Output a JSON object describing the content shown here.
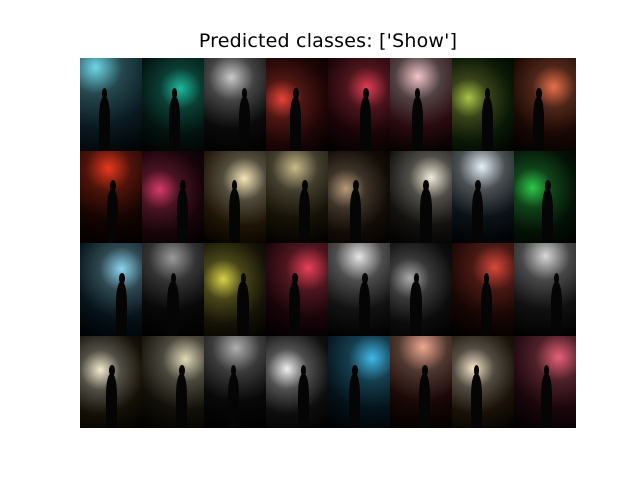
{
  "figure": {
    "title": "Predicted classes: ['Show']"
  },
  "image_grid": {
    "rows": 4,
    "cols": 8,
    "tiles": [
      {
        "palette": [
          "#6fd6e8",
          "#0a1a22"
        ]
      },
      {
        "palette": [
          "#1fb89c",
          "#04130f"
        ]
      },
      {
        "palette": [
          "#c9c9c9",
          "#0a0a0a"
        ]
      },
      {
        "palette": [
          "#e8443a",
          "#200606"
        ]
      },
      {
        "palette": [
          "#e23d55",
          "#1a0408"
        ]
      },
      {
        "palette": [
          "#f2c4c8",
          "#2a0a0e"
        ]
      },
      {
        "palette": [
          "#a8c44a",
          "#0a1806"
        ]
      },
      {
        "palette": [
          "#e8704a",
          "#1a0804"
        ]
      },
      {
        "palette": [
          "#e8381e",
          "#140402"
        ]
      },
      {
        "palette": [
          "#d83a6a",
          "#18040a"
        ]
      },
      {
        "palette": [
          "#f6e6b8",
          "#201406"
        ]
      },
      {
        "palette": [
          "#c8ba8a",
          "#161206"
        ]
      },
      {
        "palette": [
          "#b89a7a",
          "#120c06"
        ]
      },
      {
        "palette": [
          "#f0ead8",
          "#141210"
        ]
      },
      {
        "palette": [
          "#e4f0f8",
          "#0a1218"
        ]
      },
      {
        "palette": [
          "#2ec84a",
          "#041206"
        ]
      },
      {
        "palette": [
          "#8cd6f0",
          "#06121a"
        ]
      },
      {
        "palette": [
          "#9a9a9a",
          "#080808"
        ]
      },
      {
        "palette": [
          "#d8d04a",
          "#161406"
        ]
      },
      {
        "palette": [
          "#e8405a",
          "#18040a"
        ]
      },
      {
        "palette": [
          "#e6e6e6",
          "#121212"
        ]
      },
      {
        "palette": [
          "#aaaaaa",
          "#0c0c0c"
        ]
      },
      {
        "palette": [
          "#d8483a",
          "#160604"
        ]
      },
      {
        "palette": [
          "#d8d8d8",
          "#101010"
        ]
      },
      {
        "palette": [
          "#f4ecd0",
          "#141006"
        ]
      },
      {
        "palette": [
          "#e0d8b8",
          "#121008"
        ]
      },
      {
        "palette": [
          "#b0b0b0",
          "#080808"
        ]
      },
      {
        "palette": [
          "#f0f0f0",
          "#0e0e0e"
        ]
      },
      {
        "palette": [
          "#40b8e8",
          "#04121a"
        ]
      },
      {
        "palette": [
          "#f0a890",
          "#1a0806"
        ]
      },
      {
        "palette": [
          "#f8e6c8",
          "#1a1208"
        ]
      },
      {
        "palette": [
          "#e8607a",
          "#1a060c"
        ]
      }
    ]
  }
}
